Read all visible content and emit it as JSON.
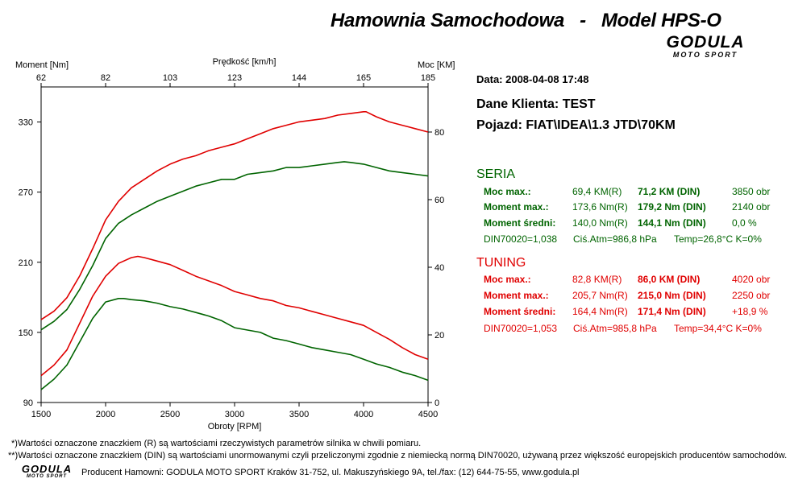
{
  "header": {
    "title": "Hamownia Samochodowa   -   Model HPS-O",
    "logo_main": "GODULA",
    "logo_sub": "MOTO SPORT"
  },
  "info": {
    "date": "Data: 2008-04-08  17:48",
    "client": "Dane Klienta: TEST",
    "vehicle": "Pojazd: FIAT\\IDEA\\1.3 JTD\\70KM"
  },
  "seria": {
    "title": "SERIA",
    "rows": [
      {
        "label": "Moc max.:",
        "v1": "69,4 KM(R)",
        "v2": "71,2 KM (DIN)",
        "v3": "3850 obr"
      },
      {
        "label": "Moment max.:",
        "v1": "173,6 Nm(R)",
        "v2": "179,2 Nm (DIN)",
        "v3": "2140 obr"
      },
      {
        "label": "Moment średni:",
        "v1": "140,0 Nm(R)",
        "v2": "144,1 Nm (DIN)",
        "v3": "0,0 %"
      }
    ],
    "env": {
      "din": "DIN70020=1,038",
      "atm": "Ciś.Atm=986,8 hPa",
      "temp": "Temp=26,8°C  K=0%"
    }
  },
  "tuning": {
    "title": "TUNING",
    "rows": [
      {
        "label": "Moc max.:",
        "v1": "82,8 KM(R)",
        "v2": "86,0 KM (DIN)",
        "v3": "4020 obr"
      },
      {
        "label": "Moment max.:",
        "v1": "205,7 Nm(R)",
        "v2": "215,0 Nm (DIN)",
        "v3": "2250 obr"
      },
      {
        "label": "Moment średni:",
        "v1": "164,4 Nm(R)",
        "v2": "171,4 Nm (DIN)",
        "v3": "+18,9 %"
      }
    ],
    "env": {
      "din": "DIN70020=1,053",
      "atm": "Ciś.Atm=985,8 hPa",
      "temp": "Temp=34,4°C  K=0%"
    }
  },
  "footer": {
    "note1": "*)Wartości oznaczone znaczkiem (R) są wartościami rzeczywistych parametrów silnika w chwili pomiaru.",
    "note2": "**)Wartości oznaczone znaczkiem (DIN) są wartościami unormowanymi czyli przeliczonymi zgodnie z niemiecką normą DIN70020, używaną przez większość europejskich producentów samochodów.",
    "producer": "Producent Hamowni: GODULA MOTO SPORT Kraków 31-752, ul. Makuszyńskiego 9A, tel./fax: (12) 644-75-55, www.godula.pl"
  },
  "colors": {
    "seria": "#006400",
    "tuning": "#e00000"
  },
  "chart_data": {
    "type": "line",
    "xlabel": "Obroty [RPM]",
    "x2label": "Prędkość [km/h]",
    "ylabel_left": "Moment [Nm]",
    "ylabel_right": "Moc [KM]",
    "xlim": [
      1500,
      4500
    ],
    "ylim_left": [
      90,
      360
    ],
    "ylim_right": [
      0,
      93.33
    ],
    "x_ticks": [
      "1500",
      "2000",
      "2500",
      "3000",
      "3500",
      "4000",
      "4500"
    ],
    "x2_ticks": [
      "62",
      "82",
      "103",
      "123",
      "144",
      "165",
      "185"
    ],
    "y_left_ticks": [
      "90",
      "150",
      "210",
      "270",
      "330"
    ],
    "y_right_ticks": [
      "0",
      "20",
      "40",
      "60",
      "80"
    ],
    "grid": false,
    "series": [
      {
        "group": "tuning",
        "quantity": "torque",
        "axis": "left",
        "x": [
          1500,
          1600,
          1700,
          1800,
          1900,
          2000,
          2100,
          2200,
          2250,
          2300,
          2400,
          2500,
          2600,
          2700,
          2800,
          2900,
          3000,
          3100,
          3200,
          3300,
          3400,
          3500,
          3600,
          3700,
          3800,
          3900,
          4000,
          4100,
          4200,
          4300,
          4400,
          4500
        ],
        "y": [
          113,
          122,
          135,
          158,
          181,
          198,
          209,
          214,
          215,
          214,
          211,
          208,
          203,
          198,
          194,
          190,
          185,
          182,
          179,
          177,
          173,
          171,
          168,
          165,
          162,
          159,
          156,
          150,
          144,
          137,
          131,
          127
        ]
      },
      {
        "group": "seria",
        "quantity": "torque",
        "axis": "left",
        "x": [
          1500,
          1600,
          1700,
          1800,
          1900,
          2000,
          2100,
          2140,
          2200,
          2300,
          2400,
          2500,
          2600,
          2700,
          2800,
          2900,
          3000,
          3100,
          3200,
          3300,
          3400,
          3500,
          3600,
          3700,
          3800,
          3900,
          4000,
          4100,
          4200,
          4300,
          4400,
          4500
        ],
        "y": [
          101,
          110,
          122,
          142,
          162,
          176,
          179,
          179,
          178,
          177,
          175,
          172,
          170,
          167,
          164,
          160,
          154,
          152,
          150,
          145,
          143,
          140,
          137,
          135,
          133,
          131,
          127,
          123,
          120,
          116,
          113,
          109
        ]
      },
      {
        "group": "tuning",
        "quantity": "power",
        "axis": "right",
        "x": [
          1500,
          1600,
          1700,
          1800,
          1900,
          2000,
          2100,
          2200,
          2300,
          2400,
          2500,
          2600,
          2700,
          2800,
          2900,
          3000,
          3100,
          3200,
          3300,
          3400,
          3500,
          3600,
          3700,
          3800,
          3900,
          4000,
          4020,
          4100,
          4200,
          4300,
          4400,
          4500
        ],
        "y": [
          24.5,
          27,
          31,
          37.5,
          45.5,
          54,
          59.5,
          63.5,
          66,
          68.5,
          70.5,
          72,
          73,
          74.5,
          75.5,
          76.5,
          78,
          79.5,
          81,
          82,
          83,
          83.5,
          84,
          85,
          85.5,
          86,
          86,
          84.5,
          83,
          82,
          81,
          80
        ]
      },
      {
        "group": "seria",
        "quantity": "power",
        "axis": "right",
        "x": [
          1500,
          1600,
          1700,
          1800,
          1900,
          2000,
          2100,
          2200,
          2300,
          2400,
          2500,
          2600,
          2700,
          2800,
          2900,
          3000,
          3100,
          3200,
          3300,
          3400,
          3500,
          3600,
          3700,
          3800,
          3850,
          3900,
          4000,
          4100,
          4200,
          4300,
          4400,
          4500
        ],
        "y": [
          21.5,
          24,
          27.5,
          33.5,
          40.5,
          48.5,
          53,
          55.5,
          57.5,
          59.5,
          61,
          62.5,
          64,
          65,
          66,
          66,
          67.5,
          68,
          68.5,
          69.5,
          69.5,
          70,
          70.5,
          71,
          71.2,
          71,
          70.5,
          69.5,
          68.5,
          68,
          67.5,
          67
        ]
      }
    ]
  }
}
